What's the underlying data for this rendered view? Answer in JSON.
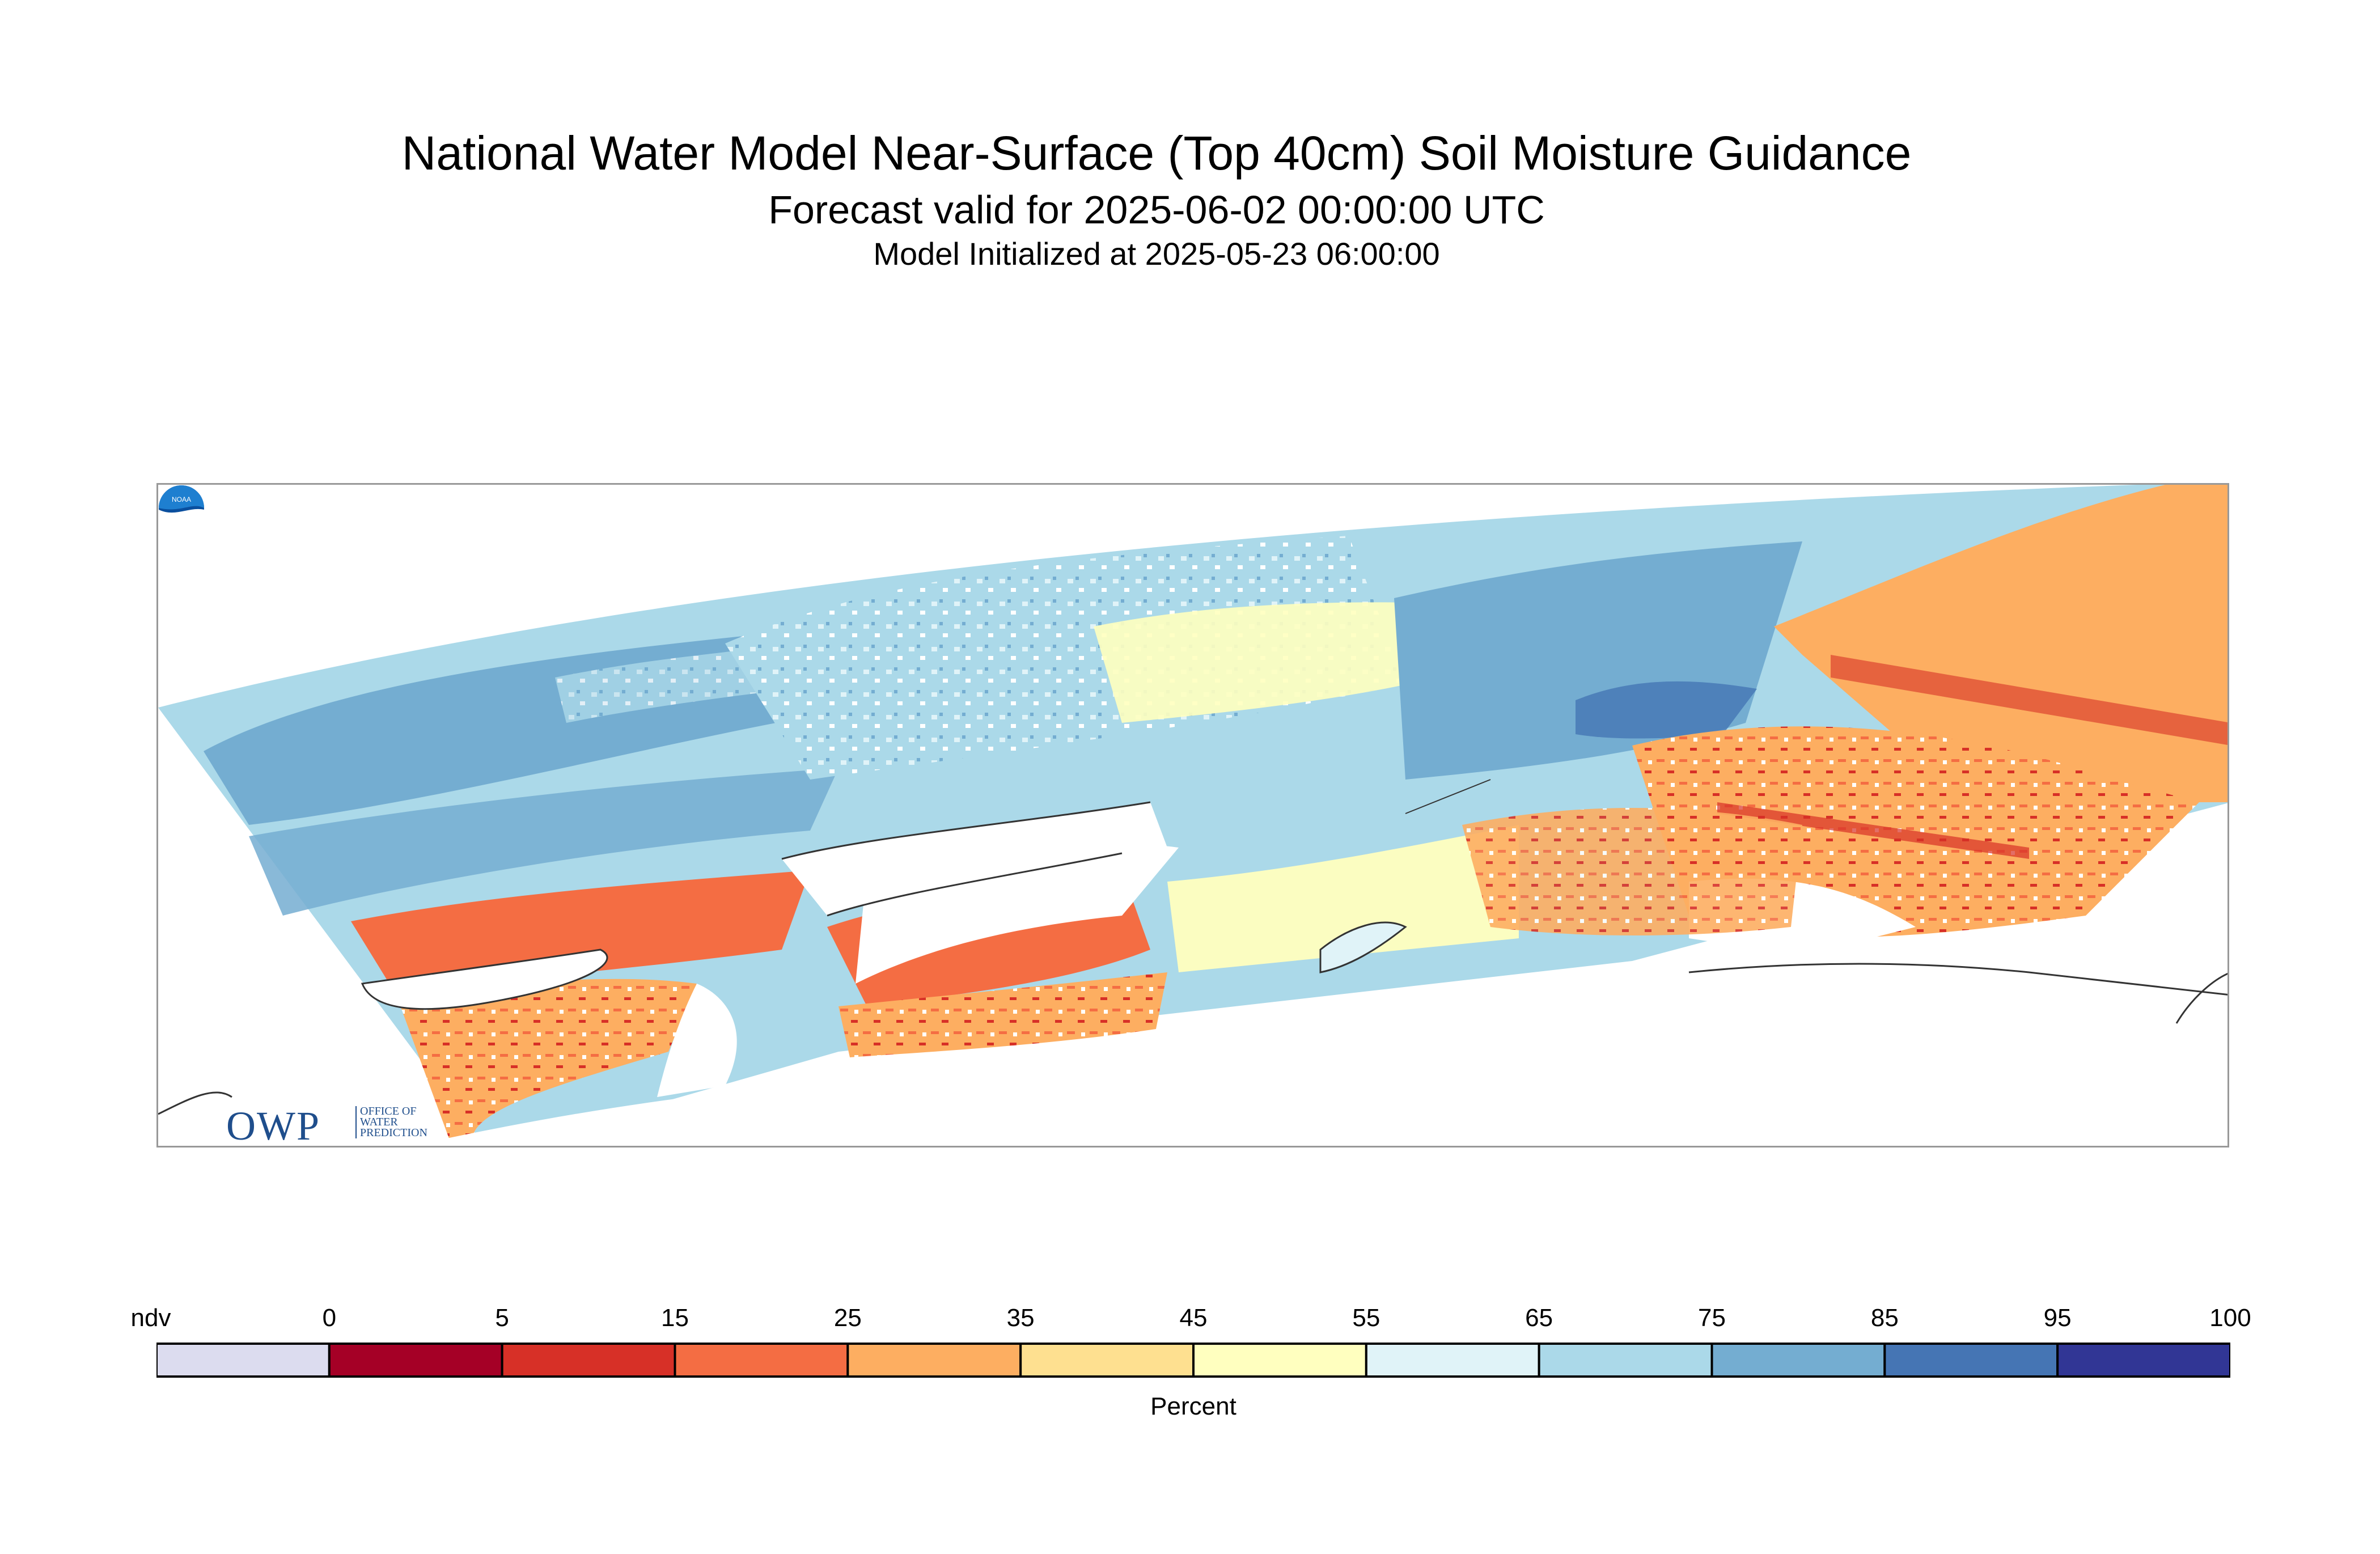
{
  "title": "National Water Model Near-Surface (Top 40cm) Soil Moisture Guidance",
  "subtitle": "Forecast valid for 2025-06-02 00:00:00 UTC",
  "init_line": "Model Initialized at 2025-05-23 06:00:00",
  "logos": {
    "owp_text": "OWP",
    "owp_small": [
      "OFFICE OF",
      "WATER",
      "PREDICTION"
    ],
    "noaa_text": "NOAA"
  },
  "colorbar": {
    "label": "Percent",
    "tick_labels": [
      "ndv",
      "0",
      "5",
      "15",
      "25",
      "35",
      "45",
      "55",
      "65",
      "75",
      "85",
      "95",
      "100"
    ],
    "bins": [
      {
        "range": "ndv",
        "color": "#dcdcef"
      },
      {
        "range": "0-5",
        "color": "#a50026"
      },
      {
        "range": "5-15",
        "color": "#d73027"
      },
      {
        "range": "15-25",
        "color": "#f46d43"
      },
      {
        "range": "25-35",
        "color": "#fdae61"
      },
      {
        "range": "35-45",
        "color": "#fee090"
      },
      {
        "range": "45-55",
        "color": "#ffffbf"
      },
      {
        "range": "55-65",
        "color": "#e0f3f8"
      },
      {
        "range": "65-75",
        "color": "#abd9e9"
      },
      {
        "range": "75-85",
        "color": "#74add1"
      },
      {
        "range": "85-95",
        "color": "#4575b4"
      },
      {
        "range": "95-100",
        "color": "#313695"
      }
    ]
  }
}
